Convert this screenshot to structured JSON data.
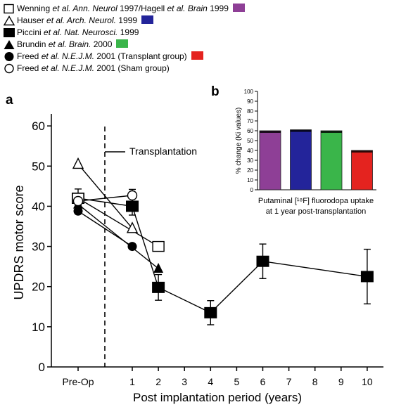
{
  "legend": [
    {
      "marker": "open-square",
      "pre": "Wenning ",
      "etal": "et al.",
      "journal": " Ann. Neurol",
      "post": " 1997/Hagell ",
      "etal2": "et al.",
      "journal2": " Brain",
      "post2": " 1999",
      "swatch": "#8e3f96"
    },
    {
      "marker": "open-triangle",
      "pre": "Hauser ",
      "etal": "et al.",
      "journal": " Arch. Neurol.",
      "post": " 1999",
      "swatch": "#23249a"
    },
    {
      "marker": "filled-square",
      "pre": "Piccini ",
      "etal": "et al.",
      "journal": " Nat. Neurosci.",
      "post": " 1999",
      "swatch": ""
    },
    {
      "marker": "filled-triangle",
      "pre": "Brundin ",
      "etal": "et al.",
      "journal": " Brain.",
      "post": " 2000",
      "swatch": "#3ab54a"
    },
    {
      "marker": "filled-circle",
      "pre": "Freed ",
      "etal": "et al.",
      "journal": " N.E.J.M.",
      "post": " 2001 (Transplant group)",
      "swatch": "#e4231f"
    },
    {
      "marker": "open-circle",
      "pre": "Freed ",
      "etal": "et al.",
      "journal": " N.E.J.M.",
      "post": " 2001 (Sham group)",
      "swatch": ""
    }
  ],
  "panel_a_label": "a",
  "panel_b_label": "b",
  "chart_data": [
    {
      "type": "line",
      "panel": "a",
      "xlabel": "Post implantation period (years)",
      "ylabel": "UPDRS motor score",
      "xticks": [
        "Pre-Op",
        "1",
        "2",
        "3",
        "4",
        "5",
        "6",
        "7",
        "8",
        "9",
        "10"
      ],
      "yticks": [
        0,
        10,
        20,
        30,
        40,
        50,
        60
      ],
      "ylim": [
        0,
        63
      ],
      "annotation": "Transplantation",
      "series": [
        {
          "marker": "open-square",
          "x": [
            0,
            2
          ],
          "y": [
            42,
            30
          ]
        },
        {
          "marker": "open-triangle",
          "x": [
            0,
            1
          ],
          "y": [
            50.5,
            34.5
          ]
        },
        {
          "marker": "filled-square",
          "x": [
            0,
            1,
            2,
            4,
            6,
            10
          ],
          "y": [
            42,
            40,
            19.8,
            13.5,
            26.3,
            22.5
          ],
          "err": [
            2.3,
            2.2,
            3.2,
            3,
            4.3,
            6.8
          ]
        },
        {
          "marker": "filled-triangle",
          "x": [
            0,
            2
          ],
          "y": [
            40.5,
            24.5
          ]
        },
        {
          "marker": "filled-circle",
          "x": [
            0,
            1
          ],
          "y": [
            38.8,
            30
          ]
        },
        {
          "marker": "open-circle",
          "x": [
            0,
            1
          ],
          "y": [
            41.3,
            42.7
          ],
          "err": [
            1.2,
            1.5
          ]
        }
      ]
    },
    {
      "type": "bar",
      "panel": "b",
      "ylabel": "% change (Ki values)",
      "xlabel_lines": [
        "Putaminal [¹⁸F] fluorodopa uptake",
        "at 1 year post-transplantation"
      ],
      "yticks": [
        0,
        10,
        20,
        30,
        40,
        50,
        60,
        70,
        80,
        90,
        100
      ],
      "ylim": [
        0,
        100
      ],
      "values": [
        60,
        61,
        60,
        40
      ],
      "colors": [
        "#8e3f96",
        "#23249a",
        "#3ab54a",
        "#e4231f"
      ]
    }
  ]
}
